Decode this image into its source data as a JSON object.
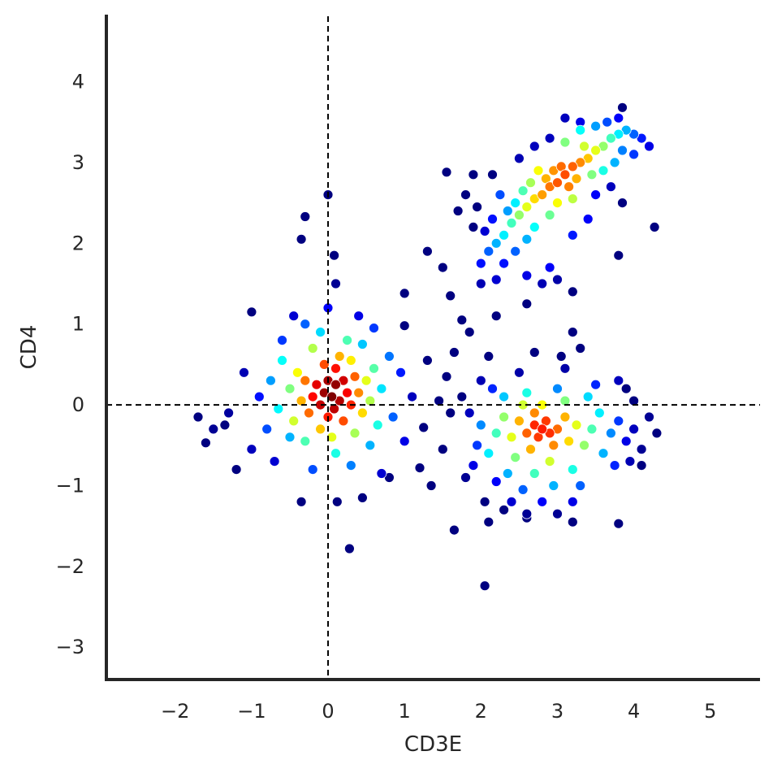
{
  "chart_data": {
    "type": "scatter",
    "title": "",
    "xlabel": "CD3E",
    "ylabel": "CD4",
    "xlim": [
      -2.9,
      5.65
    ],
    "ylim": [
      -3.4,
      4.83
    ],
    "xticks": [
      -2,
      -1,
      0,
      1,
      2,
      3,
      4,
      5
    ],
    "yticks": [
      -3,
      -2,
      -1,
      0,
      1,
      2,
      3,
      4
    ],
    "xtick_labels": [
      "−2",
      "−1",
      "0",
      "1",
      "2",
      "3",
      "4",
      "5"
    ],
    "ytick_labels": [
      "−3",
      "−2",
      "−1",
      "0",
      "1",
      "2",
      "3",
      "4"
    ],
    "grid": false,
    "colormap": "jet",
    "color_encodes": "point density",
    "reference_lines": {
      "x": 0,
      "y": 0,
      "style": "dashed",
      "color": "#000000"
    },
    "clusters": [
      {
        "center_x": 0.0,
        "center_y": 0.2,
        "peak_density": 1.0
      },
      {
        "center_x": 3.1,
        "center_y": 2.8,
        "peak_density": 0.8
      },
      {
        "center_x": 2.8,
        "center_y": -0.3,
        "peak_density": 0.85
      }
    ],
    "points": [
      [
        0.05,
        0.1,
        1.0
      ],
      [
        0.1,
        0.25,
        0.98
      ],
      [
        -0.05,
        0.15,
        0.97
      ],
      [
        0.15,
        0.05,
        0.95
      ],
      [
        0.0,
        0.3,
        0.96
      ],
      [
        -0.1,
        0.0,
        0.93
      ],
      [
        0.2,
        0.3,
        0.92
      ],
      [
        0.08,
        -0.05,
        0.94
      ],
      [
        -0.15,
        0.25,
        0.9
      ],
      [
        0.25,
        0.15,
        0.88
      ],
      [
        0.1,
        0.45,
        0.86
      ],
      [
        -0.2,
        0.1,
        0.87
      ],
      [
        0.3,
        0.0,
        0.84
      ],
      [
        0.0,
        -0.15,
        0.85
      ],
      [
        -0.05,
        0.5,
        0.8
      ],
      [
        0.35,
        0.35,
        0.78
      ],
      [
        -0.3,
        0.3,
        0.76
      ],
      [
        0.2,
        -0.2,
        0.8
      ],
      [
        -0.25,
        -0.1,
        0.77
      ],
      [
        0.4,
        0.15,
        0.74
      ],
      [
        0.15,
        0.6,
        0.7
      ],
      [
        -0.35,
        0.05,
        0.7
      ],
      [
        0.45,
        -0.1,
        0.66
      ],
      [
        -0.1,
        -0.3,
        0.68
      ],
      [
        0.3,
        0.55,
        0.64
      ],
      [
        -0.4,
        0.4,
        0.62
      ],
      [
        0.5,
        0.3,
        0.6
      ],
      [
        0.05,
        -0.4,
        0.6
      ],
      [
        -0.45,
        -0.2,
        0.58
      ],
      [
        0.55,
        0.05,
        0.55
      ],
      [
        -0.2,
        0.7,
        0.55
      ],
      [
        0.35,
        -0.35,
        0.54
      ],
      [
        -0.5,
        0.2,
        0.5
      ],
      [
        0.6,
        0.45,
        0.46
      ],
      [
        0.25,
        0.8,
        0.45
      ],
      [
        -0.3,
        -0.45,
        0.45
      ],
      [
        0.65,
        -0.25,
        0.4
      ],
      [
        -0.6,
        0.55,
        0.38
      ],
      [
        0.1,
        -0.6,
        0.4
      ],
      [
        -0.65,
        -0.05,
        0.37
      ],
      [
        0.7,
        0.2,
        0.35
      ],
      [
        -0.1,
        0.9,
        0.34
      ],
      [
        0.45,
        0.75,
        0.32
      ],
      [
        -0.5,
        -0.4,
        0.3
      ],
      [
        0.55,
        -0.5,
        0.3
      ],
      [
        -0.75,
        0.3,
        0.28
      ],
      [
        0.8,
        0.6,
        0.24
      ],
      [
        0.3,
        -0.75,
        0.25
      ],
      [
        -0.3,
        1.0,
        0.22
      ],
      [
        0.85,
        -0.15,
        0.22
      ],
      [
        -0.8,
        -0.3,
        0.2
      ],
      [
        0.6,
        0.95,
        0.18
      ],
      [
        -0.6,
        0.8,
        0.18
      ],
      [
        0.95,
        0.4,
        0.15
      ],
      [
        -0.2,
        -0.8,
        0.2
      ],
      [
        -0.9,
        0.1,
        0.14
      ],
      [
        0.0,
        1.2,
        0.12
      ],
      [
        0.4,
        1.1,
        0.1
      ],
      [
        -0.45,
        1.1,
        0.08
      ],
      [
        1.0,
        -0.45,
        0.1
      ],
      [
        -1.0,
        -0.55,
        0.06
      ],
      [
        -1.1,
        0.4,
        0.05
      ],
      [
        0.7,
        -0.85,
        0.08
      ],
      [
        -0.7,
        -0.7,
        0.08
      ],
      [
        1.1,
        0.1,
        0.06
      ],
      [
        -1.3,
        -0.1,
        0.03
      ],
      [
        -1.5,
        -0.3,
        0.02
      ],
      [
        -1.7,
        -0.15,
        0.0
      ],
      [
        -1.6,
        -0.47,
        0.0
      ],
      [
        -1.35,
        -0.25,
        0.0
      ],
      [
        -1.2,
        -0.8,
        0.0
      ],
      [
        -1.0,
        1.15,
        0.0
      ],
      [
        -0.35,
        2.05,
        0.0
      ],
      [
        -0.3,
        2.33,
        0.0
      ],
      [
        0.0,
        2.6,
        0.0
      ],
      [
        0.08,
        1.85,
        0.0
      ],
      [
        0.1,
        1.5,
        0.02
      ],
      [
        -0.35,
        -1.2,
        0.0
      ],
      [
        0.12,
        -1.2,
        0.0
      ],
      [
        0.28,
        -1.78,
        0.0
      ],
      [
        0.45,
        -1.15,
        0.0
      ],
      [
        0.8,
        -0.9,
        0.0
      ],
      [
        1.2,
        -0.78,
        0.0
      ],
      [
        1.35,
        -1.0,
        0.0
      ],
      [
        1.0,
        1.38,
        0.0
      ],
      [
        1.0,
        0.98,
        0.0
      ],
      [
        1.3,
        0.55,
        0.0
      ],
      [
        1.25,
        -0.28,
        0.0
      ],
      [
        1.5,
        -0.55,
        0.0
      ],
      [
        1.45,
        0.05,
        0.0
      ],
      [
        1.55,
        0.35,
        0.0
      ],
      [
        1.6,
        -0.1,
        0.0
      ],
      [
        1.6,
        1.35,
        0.0
      ],
      [
        1.65,
        -1.55,
        0.0
      ],
      [
        2.05,
        -2.24,
        0.0
      ],
      [
        1.55,
        2.88,
        0.0
      ],
      [
        1.9,
        2.85,
        0.0
      ],
      [
        1.7,
        2.4,
        0.0
      ],
      [
        1.3,
        1.9,
        0.0
      ],
      [
        1.5,
        1.7,
        0.0
      ],
      [
        1.75,
        1.05,
        0.0
      ],
      [
        1.65,
        0.65,
        0.0
      ],
      [
        1.85,
        0.9,
        0.0
      ],
      [
        2.1,
        0.6,
        0.0
      ],
      [
        2.2,
        1.1,
        0.0
      ],
      [
        2.6,
        1.25,
        0.0
      ],
      [
        2.7,
        0.65,
        0.0
      ],
      [
        3.05,
        0.6,
        0.0
      ],
      [
        3.2,
        0.9,
        0.0
      ],
      [
        3.3,
        0.7,
        0.0
      ],
      [
        3.2,
        1.4,
        0.0
      ],
      [
        4.27,
        2.2,
        0.0
      ],
      [
        3.85,
        2.5,
        0.0
      ],
      [
        3.8,
        1.85,
        0.0
      ],
      [
        3.8,
        -1.47,
        0.0
      ],
      [
        2.6,
        -1.4,
        0.0
      ],
      [
        2.1,
        -1.45,
        0.0
      ],
      [
        3.2,
        -1.45,
        0.0
      ],
      [
        4.3,
        -0.35,
        0.0
      ],
      [
        4.1,
        -0.75,
        0.0
      ],
      [
        3.9,
        0.2,
        0.0
      ],
      [
        4.0,
        0.05,
        0.0
      ],
      [
        3.1,
        2.85,
        0.8
      ],
      [
        3.0,
        2.75,
        0.79
      ],
      [
        3.2,
        2.95,
        0.78
      ],
      [
        2.9,
        2.7,
        0.76
      ],
      [
        3.3,
        3.0,
        0.74
      ],
      [
        2.8,
        2.6,
        0.72
      ],
      [
        3.05,
        2.95,
        0.77
      ],
      [
        3.15,
        2.7,
        0.75
      ],
      [
        2.95,
        2.9,
        0.73
      ],
      [
        3.4,
        3.05,
        0.68
      ],
      [
        2.7,
        2.55,
        0.66
      ],
      [
        3.25,
        2.8,
        0.7
      ],
      [
        2.85,
        2.8,
        0.7
      ],
      [
        3.5,
        3.15,
        0.6
      ],
      [
        2.6,
        2.45,
        0.6
      ],
      [
        3.0,
        2.5,
        0.62
      ],
      [
        3.35,
        3.2,
        0.58
      ],
      [
        2.75,
        2.9,
        0.62
      ],
      [
        3.6,
        3.2,
        0.52
      ],
      [
        2.5,
        2.35,
        0.52
      ],
      [
        3.2,
        2.55,
        0.56
      ],
      [
        2.65,
        2.75,
        0.54
      ],
      [
        3.7,
        3.3,
        0.44
      ],
      [
        2.4,
        2.25,
        0.44
      ],
      [
        3.45,
        2.85,
        0.5
      ],
      [
        2.9,
        2.35,
        0.48
      ],
      [
        3.1,
        3.25,
        0.5
      ],
      [
        2.55,
        2.65,
        0.45
      ],
      [
        3.8,
        3.35,
        0.36
      ],
      [
        2.3,
        2.1,
        0.36
      ],
      [
        3.6,
        2.9,
        0.4
      ],
      [
        2.7,
        2.2,
        0.38
      ],
      [
        3.3,
        3.4,
        0.38
      ],
      [
        2.45,
        2.5,
        0.36
      ],
      [
        3.9,
        3.4,
        0.3
      ],
      [
        2.2,
        2.0,
        0.3
      ],
      [
        3.75,
        3.0,
        0.3
      ],
      [
        2.6,
        2.05,
        0.3
      ],
      [
        3.5,
        3.45,
        0.28
      ],
      [
        2.35,
        2.4,
        0.28
      ],
      [
        4.0,
        3.35,
        0.22
      ],
      [
        2.1,
        1.9,
        0.22
      ],
      [
        3.85,
        3.15,
        0.25
      ],
      [
        2.45,
        1.9,
        0.22
      ],
      [
        3.65,
        3.5,
        0.2
      ],
      [
        2.25,
        2.6,
        0.2
      ],
      [
        4.1,
        3.3,
        0.15
      ],
      [
        2.0,
        1.75,
        0.14
      ],
      [
        4.0,
        3.1,
        0.18
      ],
      [
        2.3,
        1.75,
        0.14
      ],
      [
        3.8,
        3.55,
        0.12
      ],
      [
        2.15,
        2.3,
        0.14
      ],
      [
        4.2,
        3.2,
        0.1
      ],
      [
        2.05,
        2.15,
        0.08
      ],
      [
        2.6,
        1.6,
        0.1
      ],
      [
        2.9,
        1.7,
        0.12
      ],
      [
        3.2,
        2.1,
        0.15
      ],
      [
        3.4,
        2.3,
        0.12
      ],
      [
        2.2,
        1.55,
        0.08
      ],
      [
        2.0,
        1.5,
        0.05
      ],
      [
        3.1,
        3.55,
        0.06
      ],
      [
        3.3,
        3.5,
        0.1
      ],
      [
        3.5,
        2.6,
        0.12
      ],
      [
        3.7,
        2.7,
        0.06
      ],
      [
        2.8,
        1.5,
        0.05
      ],
      [
        3.0,
        1.55,
        0.04
      ],
      [
        2.5,
        3.05,
        0.05
      ],
      [
        2.7,
        3.2,
        0.06
      ],
      [
        2.9,
        3.3,
        0.06
      ],
      [
        3.85,
        3.68,
        0.0
      ],
      [
        1.9,
        2.2,
        0.0
      ],
      [
        1.8,
        2.6,
        0.0
      ],
      [
        1.95,
        2.45,
        0.0
      ],
      [
        2.15,
        2.85,
        0.0
      ],
      [
        2.8,
        -0.3,
        0.85
      ],
      [
        2.7,
        -0.25,
        0.84
      ],
      [
        2.9,
        -0.35,
        0.83
      ],
      [
        2.75,
        -0.4,
        0.82
      ],
      [
        2.85,
        -0.2,
        0.82
      ],
      [
        2.6,
        -0.35,
        0.78
      ],
      [
        3.0,
        -0.3,
        0.77
      ],
      [
        2.7,
        -0.1,
        0.74
      ],
      [
        2.95,
        -0.5,
        0.74
      ],
      [
        2.5,
        -0.2,
        0.7
      ],
      [
        3.1,
        -0.15,
        0.7
      ],
      [
        2.65,
        -0.55,
        0.7
      ],
      [
        3.15,
        -0.45,
        0.66
      ],
      [
        2.4,
        -0.4,
        0.6
      ],
      [
        2.8,
        0.0,
        0.62
      ],
      [
        3.25,
        -0.25,
        0.6
      ],
      [
        2.55,
        0.0,
        0.58
      ],
      [
        2.9,
        -0.7,
        0.58
      ],
      [
        3.35,
        -0.5,
        0.52
      ],
      [
        2.3,
        -0.15,
        0.52
      ],
      [
        3.1,
        0.05,
        0.5
      ],
      [
        2.45,
        -0.65,
        0.5
      ],
      [
        3.45,
        -0.3,
        0.45
      ],
      [
        2.2,
        -0.35,
        0.44
      ],
      [
        2.7,
        -0.85,
        0.44
      ],
      [
        3.2,
        -0.8,
        0.4
      ],
      [
        2.6,
        0.15,
        0.4
      ],
      [
        3.55,
        -0.1,
        0.36
      ],
      [
        2.1,
        -0.6,
        0.36
      ],
      [
        3.4,
        0.1,
        0.34
      ],
      [
        2.3,
        0.1,
        0.32
      ],
      [
        3.6,
        -0.6,
        0.3
      ],
      [
        2.35,
        -0.85,
        0.3
      ],
      [
        2.95,
        -1.0,
        0.3
      ],
      [
        3.7,
        -0.35,
        0.26
      ],
      [
        2.0,
        -0.25,
        0.26
      ],
      [
        3.0,
        0.2,
        0.26
      ],
      [
        3.3,
        -1.0,
        0.22
      ],
      [
        2.55,
        -1.05,
        0.22
      ],
      [
        3.8,
        -0.2,
        0.18
      ],
      [
        1.95,
        -0.5,
        0.18
      ],
      [
        3.75,
        -0.75,
        0.16
      ],
      [
        2.15,
        0.2,
        0.16
      ],
      [
        3.5,
        0.25,
        0.16
      ],
      [
        2.2,
        -0.95,
        0.12
      ],
      [
        3.9,
        -0.45,
        0.1
      ],
      [
        1.9,
        -0.75,
        0.1
      ],
      [
        2.8,
        -1.2,
        0.12
      ],
      [
        3.2,
        -1.2,
        0.1
      ],
      [
        2.4,
        -1.2,
        0.08
      ],
      [
        4.0,
        -0.3,
        0.06
      ],
      [
        1.85,
        -0.1,
        0.06
      ],
      [
        3.95,
        -0.7,
        0.05
      ],
      [
        2.0,
        0.3,
        0.05
      ],
      [
        3.8,
        0.3,
        0.06
      ],
      [
        2.5,
        0.4,
        0.04
      ],
      [
        3.1,
        0.45,
        0.04
      ],
      [
        2.6,
        -1.35,
        0.02
      ],
      [
        3.0,
        -1.35,
        0.02
      ],
      [
        1.8,
        -0.9,
        0.02
      ],
      [
        4.2,
        -0.15,
        0.02
      ],
      [
        4.1,
        -0.55,
        0.02
      ],
      [
        1.75,
        0.1,
        0.0
      ],
      [
        2.05,
        -1.2,
        0.0
      ],
      [
        2.3,
        -1.3,
        0.0
      ]
    ]
  }
}
